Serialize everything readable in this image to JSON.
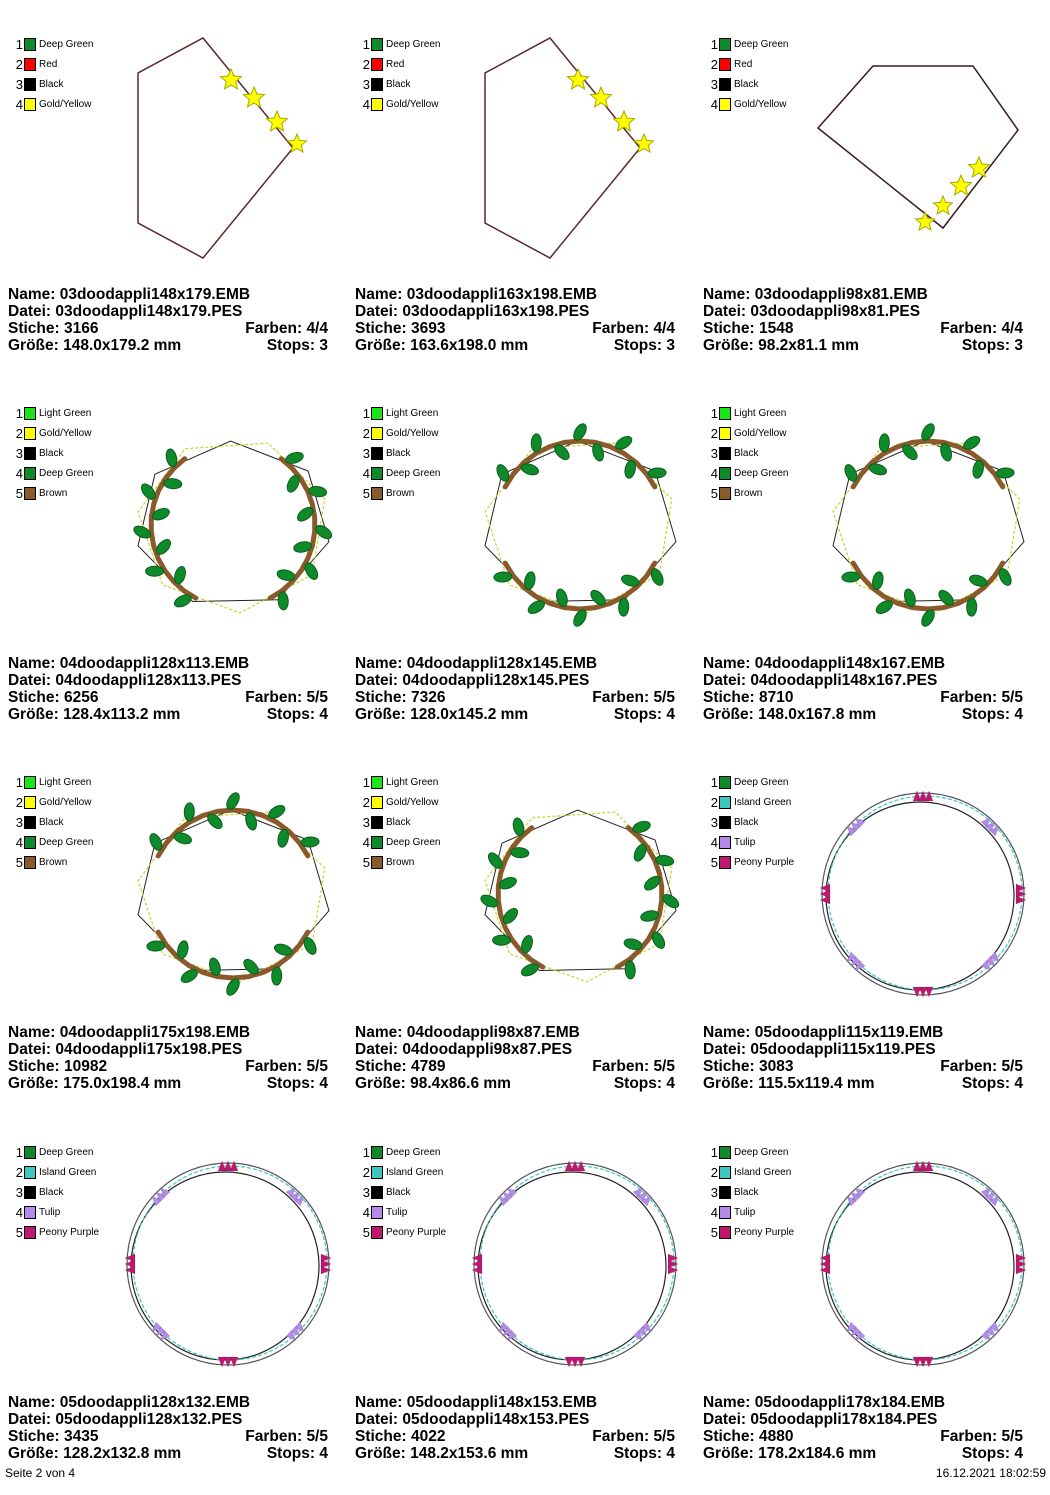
{
  "colors": {
    "Deep Green": "#0e8a2a",
    "Red": "#ff0000",
    "Black": "#000000",
    "Gold/Yellow": "#ffff00",
    "Light Green": "#19e619",
    "Brown": "#8b5a2b",
    "Island Green": "#3fc6c0",
    "Tulip": "#b48be8",
    "Peony Purple": "#c0186e"
  },
  "labels": {
    "name": "Name:",
    "datei": "Datei:",
    "stiche": "Stiche:",
    "farben": "Farben:",
    "groesse": "Größe:",
    "stops": "Stops:"
  },
  "designs": [
    {
      "kind": "hexagon",
      "name": "03doodappli148x179.EMB",
      "datei": "03doodappli148x179.PES",
      "stiche": "3166",
      "farben": "4/4",
      "groesse": "148.0x179.2 mm",
      "stops": "3",
      "threads": [
        "Deep Green",
        "Red",
        "Black",
        "Gold/Yellow"
      ]
    },
    {
      "kind": "hexagon",
      "name": "03doodappli163x198.EMB",
      "datei": "03doodappli163x198.PES",
      "stiche": "3693",
      "farben": "4/4",
      "groesse": "163.6x198.0 mm",
      "stops": "3",
      "threads": [
        "Deep Green",
        "Red",
        "Black",
        "Gold/Yellow"
      ]
    },
    {
      "kind": "pentagon",
      "name": "03doodappli98x81.EMB",
      "datei": "03doodappli98x81.PES",
      "stiche": "1548",
      "farben": "4/4",
      "groesse": "98.2x81.1 mm",
      "stops": "3",
      "threads": [
        "Deep Green",
        "Red",
        "Black",
        "Gold/Yellow"
      ]
    },
    {
      "kind": "wreath-sides",
      "name": "04doodappli128x113.EMB",
      "datei": "04doodappli128x113.PES",
      "stiche": "6256",
      "farben": "5/5",
      "groesse": "128.4x113.2 mm",
      "stops": "4",
      "threads": [
        "Light Green",
        "Gold/Yellow",
        "Black",
        "Deep Green",
        "Brown"
      ]
    },
    {
      "kind": "wreath-tb",
      "name": "04doodappli128x145.EMB",
      "datei": "04doodappli128x145.PES",
      "stiche": "7326",
      "farben": "5/5",
      "groesse": "128.0x145.2 mm",
      "stops": "4",
      "threads": [
        "Light Green",
        "Gold/Yellow",
        "Black",
        "Deep Green",
        "Brown"
      ]
    },
    {
      "kind": "wreath-tb",
      "name": "04doodappli148x167.EMB",
      "datei": "04doodappli148x167.PES",
      "stiche": "8710",
      "farben": "5/5",
      "groesse": "148.0x167.8 mm",
      "stops": "4",
      "threads": [
        "Light Green",
        "Gold/Yellow",
        "Black",
        "Deep Green",
        "Brown"
      ]
    },
    {
      "kind": "wreath-tb",
      "name": "04doodappli175x198.EMB",
      "datei": "04doodappli175x198.PES",
      "stiche": "10982",
      "farben": "5/5",
      "groesse": "175.0x198.4 mm",
      "stops": "4",
      "threads": [
        "Light Green",
        "Gold/Yellow",
        "Black",
        "Deep Green",
        "Brown"
      ]
    },
    {
      "kind": "wreath-sides",
      "name": "04doodappli98x87.EMB",
      "datei": "04doodappli98x87.PES",
      "stiche": "4789",
      "farben": "5/5",
      "groesse": "98.4x86.6 mm",
      "stops": "4",
      "threads": [
        "Light Green",
        "Gold/Yellow",
        "Black",
        "Deep Green",
        "Brown"
      ]
    },
    {
      "kind": "arrows",
      "name": "05doodappli115x119.EMB",
      "datei": "05doodappli115x119.PES",
      "stiche": "3083",
      "farben": "5/5",
      "groesse": "115.5x119.4 mm",
      "stops": "4",
      "threads": [
        "Deep Green",
        "Island Green",
        "Black",
        "Tulip",
        "Peony Purple"
      ]
    },
    {
      "kind": "arrows",
      "name": "05doodappli128x132.EMB",
      "datei": "05doodappli128x132.PES",
      "stiche": "3435",
      "farben": "5/5",
      "groesse": "128.2x132.8 mm",
      "stops": "4",
      "threads": [
        "Deep Green",
        "Island Green",
        "Black",
        "Tulip",
        "Peony Purple"
      ]
    },
    {
      "kind": "arrows",
      "name": "05doodappli148x153.EMB",
      "datei": "05doodappli148x153.PES",
      "stiche": "4022",
      "farben": "5/5",
      "groesse": "148.2x153.6 mm",
      "stops": "4",
      "threads": [
        "Deep Green",
        "Island Green",
        "Black",
        "Tulip",
        "Peony Purple"
      ]
    },
    {
      "kind": "arrows",
      "name": "05doodappli178x184.EMB",
      "datei": "05doodappli178x184.PES",
      "stiche": "4880",
      "farben": "5/5",
      "groesse": "178.2x184.6 mm",
      "stops": "4",
      "threads": [
        "Deep Green",
        "Island Green",
        "Black",
        "Tulip",
        "Peony Purple"
      ]
    }
  ],
  "footer": {
    "page": "Seite 2 von 4",
    "timestamp": "16.12.2021 18:02:59"
  }
}
